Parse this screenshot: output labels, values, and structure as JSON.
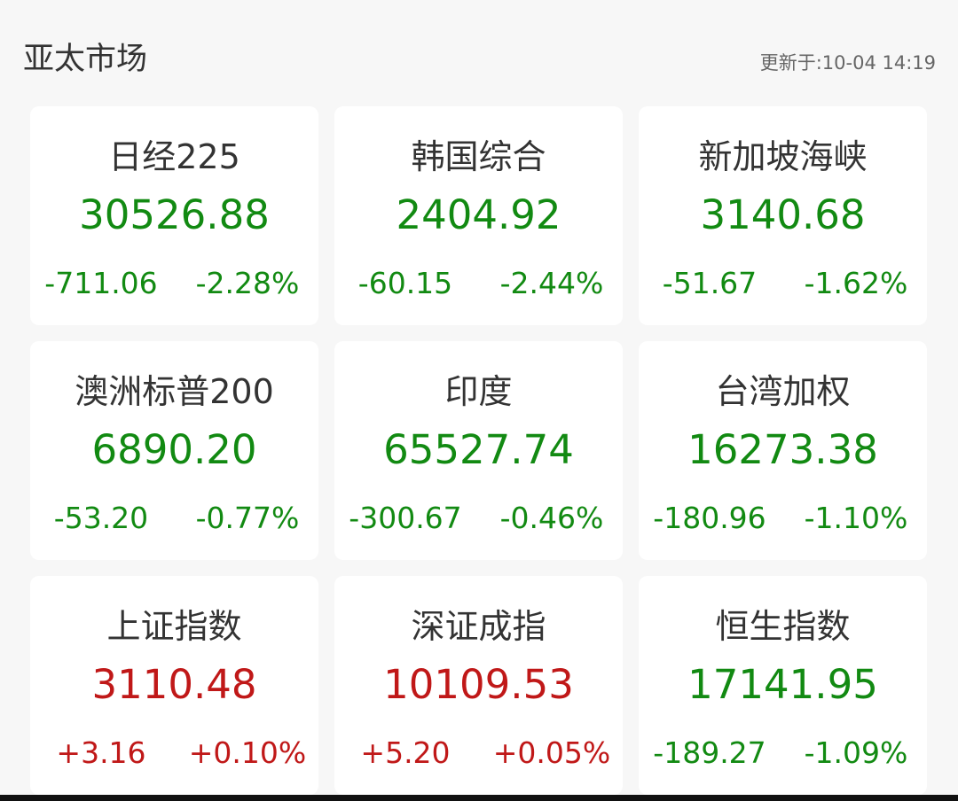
{
  "header": {
    "title": "亚太市场",
    "updated": "更新于:10-04 14:19"
  },
  "colors": {
    "down": "#128a12",
    "up": "#c01818"
  },
  "indices": [
    {
      "name": "日经225",
      "value": "30526.88",
      "change": "-711.06",
      "percent": "-2.28%",
      "trend": "down"
    },
    {
      "name": "韩国综合",
      "value": "2404.92",
      "change": "-60.15",
      "percent": "-2.44%",
      "trend": "down"
    },
    {
      "name": "新加坡海峡",
      "value": "3140.68",
      "change": "-51.67",
      "percent": "-1.62%",
      "trend": "down"
    },
    {
      "name": "澳洲标普200",
      "value": "6890.20",
      "change": "-53.20",
      "percent": "-0.77%",
      "trend": "down"
    },
    {
      "name": "印度",
      "value": "65527.74",
      "change": "-300.67",
      "percent": "-0.46%",
      "trend": "down"
    },
    {
      "name": "台湾加权",
      "value": "16273.38",
      "change": "-180.96",
      "percent": "-1.10%",
      "trend": "down"
    },
    {
      "name": "上证指数",
      "value": "3110.48",
      "change": "+3.16",
      "percent": "+0.10%",
      "trend": "up"
    },
    {
      "name": "深证成指",
      "value": "10109.53",
      "change": "+5.20",
      "percent": "+0.05%",
      "trend": "up"
    },
    {
      "name": "恒生指数",
      "value": "17141.95",
      "change": "-189.27",
      "percent": "-1.09%",
      "trend": "down"
    }
  ]
}
